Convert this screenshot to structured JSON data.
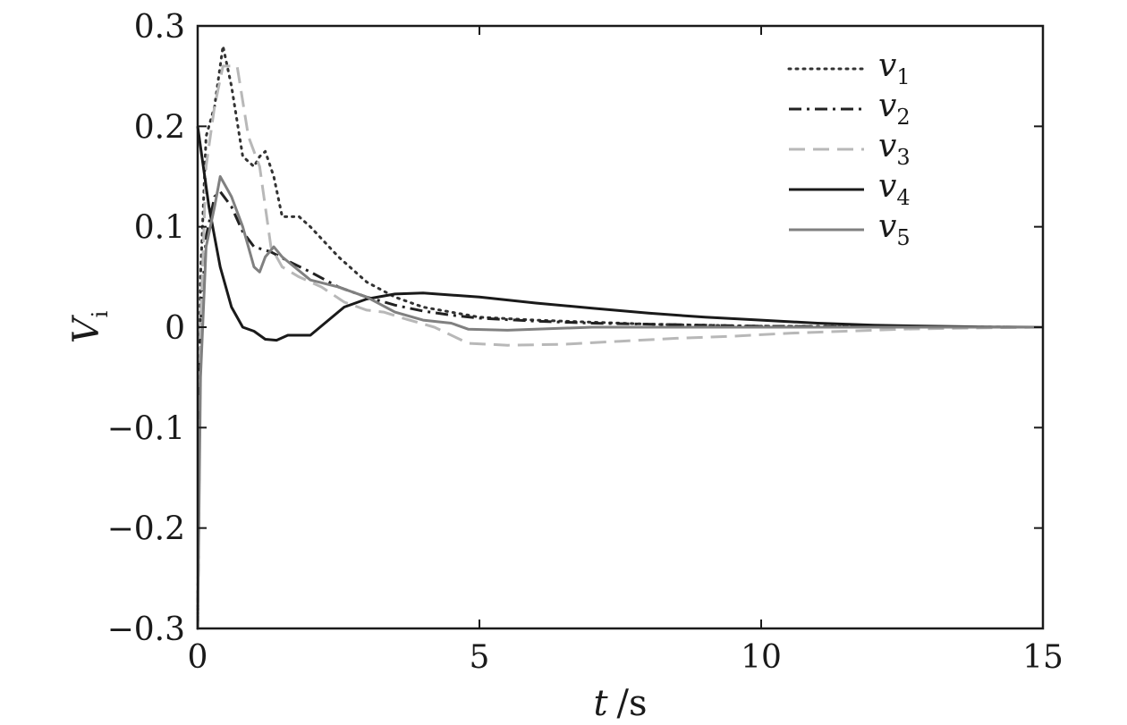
{
  "chart_data": {
    "type": "line",
    "xlabel": {
      "var": "t",
      "unit": "/s"
    },
    "ylabel": {
      "var": "V",
      "sub": "i"
    },
    "xlim": [
      0,
      15
    ],
    "ylim": [
      -0.3,
      0.3
    ],
    "xticks": [
      0,
      5,
      10,
      15
    ],
    "xtick_labels": [
      "0",
      "5",
      "10",
      "15"
    ],
    "yticks": [
      -0.3,
      -0.2,
      -0.1,
      0,
      0.1,
      0.2,
      0.3
    ],
    "ytick_labels": [
      "−0.3",
      "−0.2",
      "−0.1",
      "0",
      "0.1",
      "0.2",
      "0.3"
    ],
    "grid": false,
    "legend_position": "top-right",
    "series": [
      {
        "name": "v1",
        "label_main": "v",
        "label_sub": "1",
        "color": "#333333",
        "style": "dotted",
        "points": [
          [
            0,
            -0.3
          ],
          [
            0.05,
            0.05
          ],
          [
            0.15,
            0.19
          ],
          [
            0.3,
            0.22
          ],
          [
            0.45,
            0.28
          ],
          [
            0.6,
            0.24
          ],
          [
            0.8,
            0.17
          ],
          [
            1.0,
            0.16
          ],
          [
            1.1,
            0.17
          ],
          [
            1.2,
            0.175
          ],
          [
            1.35,
            0.15
          ],
          [
            1.5,
            0.11
          ],
          [
            1.8,
            0.11
          ],
          [
            2.0,
            0.1
          ],
          [
            2.5,
            0.07
          ],
          [
            3.0,
            0.045
          ],
          [
            3.5,
            0.03
          ],
          [
            4.0,
            0.02
          ],
          [
            5.0,
            0.01
          ],
          [
            6.0,
            0.007
          ],
          [
            7.0,
            0.005
          ],
          [
            8.0,
            0.003
          ],
          [
            9.0,
            0.002
          ],
          [
            10.0,
            0.001
          ],
          [
            11.0,
            0.0008
          ],
          [
            12.0,
            0.0004
          ],
          [
            13.0,
            0.0002
          ],
          [
            14.0,
            0.0001
          ],
          [
            15.0,
            0.0
          ]
        ]
      },
      {
        "name": "v2",
        "label_main": "v",
        "label_sub": "2",
        "color": "#222222",
        "style": "dashdot",
        "points": [
          [
            0,
            -0.3
          ],
          [
            0.05,
            0.0
          ],
          [
            0.15,
            0.09
          ],
          [
            0.3,
            0.13
          ],
          [
            0.4,
            0.135
          ],
          [
            0.6,
            0.12
          ],
          [
            0.8,
            0.095
          ],
          [
            1.0,
            0.08
          ],
          [
            1.3,
            0.075
          ],
          [
            1.6,
            0.066
          ],
          [
            2.0,
            0.055
          ],
          [
            2.5,
            0.04
          ],
          [
            3.0,
            0.03
          ],
          [
            3.5,
            0.022
          ],
          [
            4.0,
            0.016
          ],
          [
            4.5,
            0.012
          ],
          [
            5.0,
            0.009
          ],
          [
            6.0,
            0.006
          ],
          [
            7.0,
            0.004
          ],
          [
            8.0,
            0.003
          ],
          [
            9.0,
            0.002
          ],
          [
            10.0,
            0.001
          ],
          [
            12.0,
            0.0004
          ],
          [
            14.0,
            0.0001
          ],
          [
            15.0,
            0.0
          ]
        ]
      },
      {
        "name": "v3",
        "label_main": "v",
        "label_sub": "3",
        "color": "#b8b8b8",
        "style": "dashed",
        "points": [
          [
            0,
            -0.3
          ],
          [
            0.05,
            0.0
          ],
          [
            0.15,
            0.16
          ],
          [
            0.3,
            0.22
          ],
          [
            0.45,
            0.26
          ],
          [
            0.7,
            0.26
          ],
          [
            0.9,
            0.19
          ],
          [
            1.1,
            0.16
          ],
          [
            1.3,
            0.08
          ],
          [
            1.5,
            0.06
          ],
          [
            1.8,
            0.05
          ],
          [
            2.2,
            0.04
          ],
          [
            2.6,
            0.025
          ],
          [
            3.0,
            0.017
          ],
          [
            3.3,
            0.015
          ],
          [
            3.7,
            0.008
          ],
          [
            4.2,
            0.0
          ],
          [
            4.8,
            -0.016
          ],
          [
            5.5,
            -0.018
          ],
          [
            6.5,
            -0.017
          ],
          [
            7.5,
            -0.014
          ],
          [
            8.5,
            -0.011
          ],
          [
            9.5,
            -0.009
          ],
          [
            10.5,
            -0.006
          ],
          [
            11.5,
            -0.004
          ],
          [
            12.5,
            -0.002
          ],
          [
            13.5,
            -0.001
          ],
          [
            15.0,
            0.0
          ]
        ]
      },
      {
        "name": "v4",
        "label_main": "v",
        "label_sub": "4",
        "color": "#1a1a1a",
        "style": "solid",
        "points": [
          [
            0,
            0.2
          ],
          [
            0.2,
            0.12
          ],
          [
            0.4,
            0.06
          ],
          [
            0.6,
            0.02
          ],
          [
            0.8,
            0.0
          ],
          [
            1.0,
            -0.004
          ],
          [
            1.2,
            -0.012
          ],
          [
            1.4,
            -0.013
          ],
          [
            1.6,
            -0.008
          ],
          [
            2.0,
            -0.008
          ],
          [
            2.6,
            0.02
          ],
          [
            3.0,
            0.028
          ],
          [
            3.5,
            0.033
          ],
          [
            4.0,
            0.034
          ],
          [
            5.0,
            0.03
          ],
          [
            6.0,
            0.024
          ],
          [
            7.0,
            0.019
          ],
          [
            8.0,
            0.014
          ],
          [
            9.0,
            0.01
          ],
          [
            10.0,
            0.007
          ],
          [
            11.0,
            0.004
          ],
          [
            12.0,
            0.002
          ],
          [
            13.0,
            0.001
          ],
          [
            14.0,
            0.0003
          ],
          [
            15.0,
            0.0
          ]
        ]
      },
      {
        "name": "v5",
        "label_main": "v",
        "label_sub": "5",
        "color": "#808080",
        "style": "solid",
        "points": [
          [
            0,
            -0.3
          ],
          [
            0.05,
            -0.05
          ],
          [
            0.15,
            0.08
          ],
          [
            0.3,
            0.12
          ],
          [
            0.4,
            0.15
          ],
          [
            0.6,
            0.13
          ],
          [
            0.8,
            0.1
          ],
          [
            1.0,
            0.06
          ],
          [
            1.1,
            0.055
          ],
          [
            1.2,
            0.07
          ],
          [
            1.35,
            0.08
          ],
          [
            1.5,
            0.07
          ],
          [
            2.0,
            0.047
          ],
          [
            2.5,
            0.04
          ],
          [
            3.0,
            0.03
          ],
          [
            3.5,
            0.015
          ],
          [
            4.0,
            0.007
          ],
          [
            4.5,
            0.004
          ],
          [
            4.8,
            -0.002
          ],
          [
            5.5,
            -0.003
          ],
          [
            7.0,
            0.0
          ],
          [
            10.0,
            0.0
          ],
          [
            15.0,
            0.0
          ]
        ]
      }
    ]
  }
}
